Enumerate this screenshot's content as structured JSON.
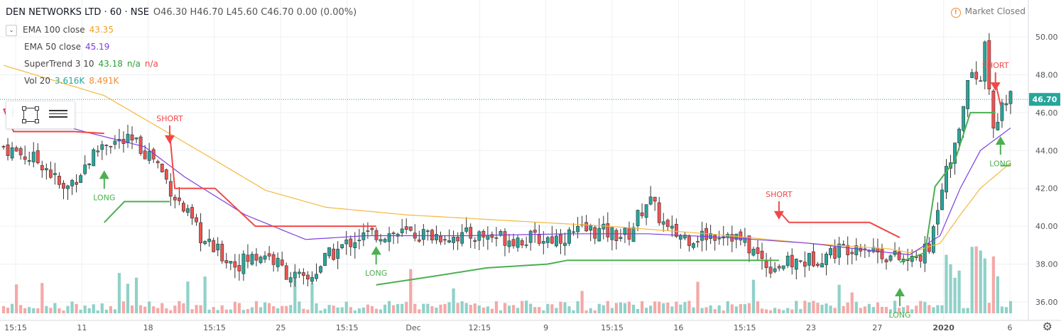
{
  "header": {
    "symbol": "DEN NETWORKS LTD · 60 · NSE",
    "ohlc": "O46.30 H46.70 L45.60 C46.70 0.00 (0.00%)",
    "collapse_icon": "chevron-up-icon"
  },
  "indicators": {
    "ema100": {
      "label": "EMA 100 close",
      "value": "43.35",
      "color": "#f5b83d"
    },
    "ema50": {
      "label": "EMA 50 close",
      "value": "45.19",
      "color": "#7b3ee0"
    },
    "supertrend": {
      "label": "SuperTrend 3 10",
      "value": "43.18",
      "na1": "n/a",
      "na2": "n/a",
      "up_color": "#4caf50",
      "down_color": "#f04848"
    },
    "volume": {
      "label": "Vol 20",
      "value1": "3.616K",
      "value2": "8.491K"
    }
  },
  "market_status": {
    "text": "Market Closed",
    "icon": "warning-icon"
  },
  "toolbar": {
    "rect_icon": "rectangle-tool-icon",
    "lines_icon": "horizontal-lines-icon",
    "grip_icon": "drag-handle-icon"
  },
  "settings_icon": "gear-icon",
  "chart_data": {
    "type": "candlestick",
    "price_axis": {
      "ylim": [
        35.4,
        51.2
      ],
      "ticks": [
        "50.00",
        "48.00",
        "46.00",
        "44.00",
        "42.00",
        "40.00",
        "38.00",
        "36.00"
      ],
      "tick_values": [
        50,
        48,
        46,
        44,
        42,
        40,
        38,
        36
      ]
    },
    "last_price": {
      "value": 46.7,
      "label": "46.70"
    },
    "x_ticks": [
      "15:15",
      "11",
      "18",
      "15:15",
      "25",
      "15:15",
      "Dec",
      "12:15",
      "9",
      "15:15",
      "16",
      "15:15",
      "23",
      "27",
      "2020",
      "6"
    ],
    "colors": {
      "up": "#26a69a",
      "down": "#ef5350",
      "ema100": "#f5b83d",
      "ema50": "#7b3ee0",
      "st_up": "#4caf50",
      "st_down": "#f04848",
      "vol_up": "#8fd1c8",
      "vol_down": "#f4a9a7"
    },
    "signals": [
      {
        "type": "LONG",
        "x": 0.1,
        "y": 42.5
      },
      {
        "type": "SHORT",
        "x": 0.165,
        "y": 44.8
      },
      {
        "type": "LONG",
        "x": 0.37,
        "y": 38.5
      },
      {
        "type": "SHORT",
        "x": 0.77,
        "y": 40.8
      },
      {
        "type": "LONG",
        "x": 0.89,
        "y": 36.3
      },
      {
        "type": "SHORT",
        "x": 0.985,
        "y": 47.6
      },
      {
        "type": "LONG",
        "x": 0.99,
        "y": 44.3
      }
    ],
    "close_keypoints": [
      [
        0,
        44.2
      ],
      [
        0.04,
        43.3
      ],
      [
        0.06,
        41.8
      ],
      [
        0.1,
        44.5
      ],
      [
        0.13,
        44.4
      ],
      [
        0.15,
        43.6
      ],
      [
        0.17,
        41.6
      ],
      [
        0.2,
        39.1
      ],
      [
        0.23,
        38.0
      ],
      [
        0.26,
        38.6
      ],
      [
        0.28,
        37.6
      ],
      [
        0.3,
        37.0
      ],
      [
        0.32,
        38.3
      ],
      [
        0.35,
        39.4
      ],
      [
        0.37,
        39.6
      ],
      [
        0.4,
        39.6
      ],
      [
        0.44,
        39.5
      ],
      [
        0.48,
        39.5
      ],
      [
        0.52,
        39.3
      ],
      [
        0.55,
        39.4
      ],
      [
        0.58,
        39.8
      ],
      [
        0.62,
        39.5
      ],
      [
        0.64,
        41.5
      ],
      [
        0.66,
        39.7
      ],
      [
        0.68,
        39.4
      ],
      [
        0.72,
        39.7
      ],
      [
        0.74,
        38.9
      ],
      [
        0.76,
        37.9
      ],
      [
        0.78,
        38.0
      ],
      [
        0.8,
        38.2
      ],
      [
        0.82,
        38.6
      ],
      [
        0.85,
        39.1
      ],
      [
        0.88,
        38.4
      ],
      [
        0.9,
        38.1
      ],
      [
        0.92,
        38.8
      ],
      [
        0.93,
        41.9
      ],
      [
        0.945,
        44.5
      ],
      [
        0.96,
        47.9
      ],
      [
        0.97,
        47.7
      ],
      [
        0.975,
        49.6
      ],
      [
        0.98,
        46.4
      ],
      [
        0.985,
        45.1
      ],
      [
        0.99,
        46.7
      ],
      [
        1.0,
        46.7
      ]
    ],
    "ema100_keypoints": [
      [
        0,
        48.5
      ],
      [
        0.1,
        46.9
      ],
      [
        0.2,
        43.8
      ],
      [
        0.26,
        41.9
      ],
      [
        0.32,
        41.0
      ],
      [
        0.4,
        40.6
      ],
      [
        0.5,
        40.3
      ],
      [
        0.6,
        40.0
      ],
      [
        0.7,
        39.6
      ],
      [
        0.8,
        39.1
      ],
      [
        0.88,
        38.8
      ],
      [
        0.9,
        38.6
      ],
      [
        0.93,
        39.1
      ],
      [
        0.95,
        40.6
      ],
      [
        0.97,
        42.0
      ],
      [
        1.0,
        43.35
      ]
    ],
    "ema50_keypoints": [
      [
        0,
        46.2
      ],
      [
        0.08,
        45.0
      ],
      [
        0.14,
        44.2
      ],
      [
        0.18,
        42.6
      ],
      [
        0.24,
        40.6
      ],
      [
        0.3,
        39.3
      ],
      [
        0.36,
        39.5
      ],
      [
        0.46,
        39.5
      ],
      [
        0.56,
        39.6
      ],
      [
        0.64,
        39.6
      ],
      [
        0.72,
        39.4
      ],
      [
        0.8,
        39.1
      ],
      [
        0.88,
        38.6
      ],
      [
        0.9,
        38.5
      ],
      [
        0.93,
        39.5
      ],
      [
        0.95,
        42.0
      ],
      [
        0.97,
        44.0
      ],
      [
        1.0,
        45.19
      ]
    ],
    "supertrend_segments": [
      {
        "dir": "down",
        "points": [
          [
            0,
            46.2
          ],
          [
            0.01,
            45.0
          ],
          [
            0.07,
            45.0
          ],
          [
            0.1,
            44.9
          ]
        ]
      },
      {
        "dir": "up",
        "points": [
          [
            0.1,
            40.2
          ],
          [
            0.12,
            41.3
          ],
          [
            0.165,
            41.3
          ]
        ]
      },
      {
        "dir": "down",
        "points": [
          [
            0.165,
            44.9
          ],
          [
            0.17,
            42.0
          ],
          [
            0.21,
            42.0
          ],
          [
            0.25,
            40.0
          ],
          [
            0.37,
            40.0
          ]
        ]
      },
      {
        "dir": "up",
        "points": [
          [
            0.37,
            36.9
          ],
          [
            0.42,
            37.3
          ],
          [
            0.48,
            37.8
          ],
          [
            0.54,
            38.0
          ],
          [
            0.56,
            38.2
          ],
          [
            0.77,
            38.2
          ]
        ]
      },
      {
        "dir": "down",
        "points": [
          [
            0.77,
            40.8
          ],
          [
            0.78,
            40.2
          ],
          [
            0.86,
            40.2
          ],
          [
            0.89,
            39.4
          ]
        ]
      },
      {
        "dir": "up",
        "points": [
          [
            0.89,
            38.1
          ],
          [
            0.915,
            38.6
          ],
          [
            0.925,
            42.1
          ],
          [
            0.945,
            43.5
          ],
          [
            0.96,
            46.0
          ],
          [
            0.985,
            46.0
          ]
        ]
      },
      {
        "dir": "down",
        "points": [
          [
            0.985,
            47.6
          ],
          [
            0.99,
            46.4
          ]
        ]
      },
      {
        "dir": "up",
        "points": [
          [
            0.99,
            43.2
          ],
          [
            1.0,
            43.2
          ]
        ]
      }
    ]
  }
}
